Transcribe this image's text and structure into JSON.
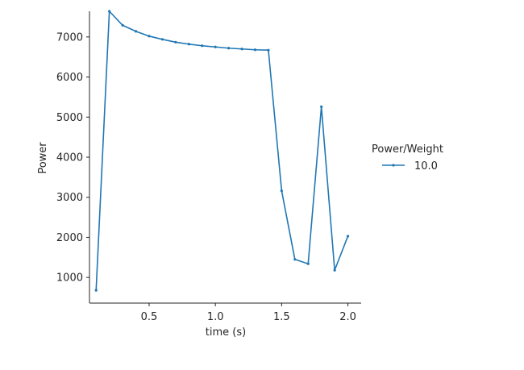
{
  "chart_data": {
    "type": "line",
    "xlabel": "time (s)",
    "ylabel": "Power",
    "xlim": [
      0.05,
      2.1
    ],
    "ylim": [
      360,
      7640
    ],
    "xticks": [
      0.5,
      1.0,
      1.5,
      2.0
    ],
    "xtick_labels": [
      "0.5",
      "1.0",
      "1.5",
      "2.0"
    ],
    "yticks": [
      1000,
      2000,
      3000,
      4000,
      5000,
      6000,
      7000
    ],
    "ytick_labels": [
      "1000",
      "2000",
      "3000",
      "4000",
      "5000",
      "6000",
      "7000"
    ],
    "grid": false,
    "legend": {
      "title": "Power/Weight",
      "placement": "right"
    },
    "colors": {
      "series": "#1f77b4",
      "axis": "#262626"
    },
    "series": [
      {
        "name": "10.0",
        "x": [
          0.1,
          0.2,
          0.3,
          0.4,
          0.5,
          0.6,
          0.7,
          0.8,
          0.9,
          1.0,
          1.1,
          1.2,
          1.3,
          1.4,
          1.5,
          1.6,
          1.7,
          1.8,
          1.9,
          2.0
        ],
        "y": [
          680,
          7640,
          7290,
          7140,
          7020,
          6940,
          6870,
          6820,
          6780,
          6750,
          6720,
          6700,
          6680,
          6670,
          3160,
          1450,
          1340,
          5260,
          1180,
          2030
        ]
      }
    ]
  }
}
